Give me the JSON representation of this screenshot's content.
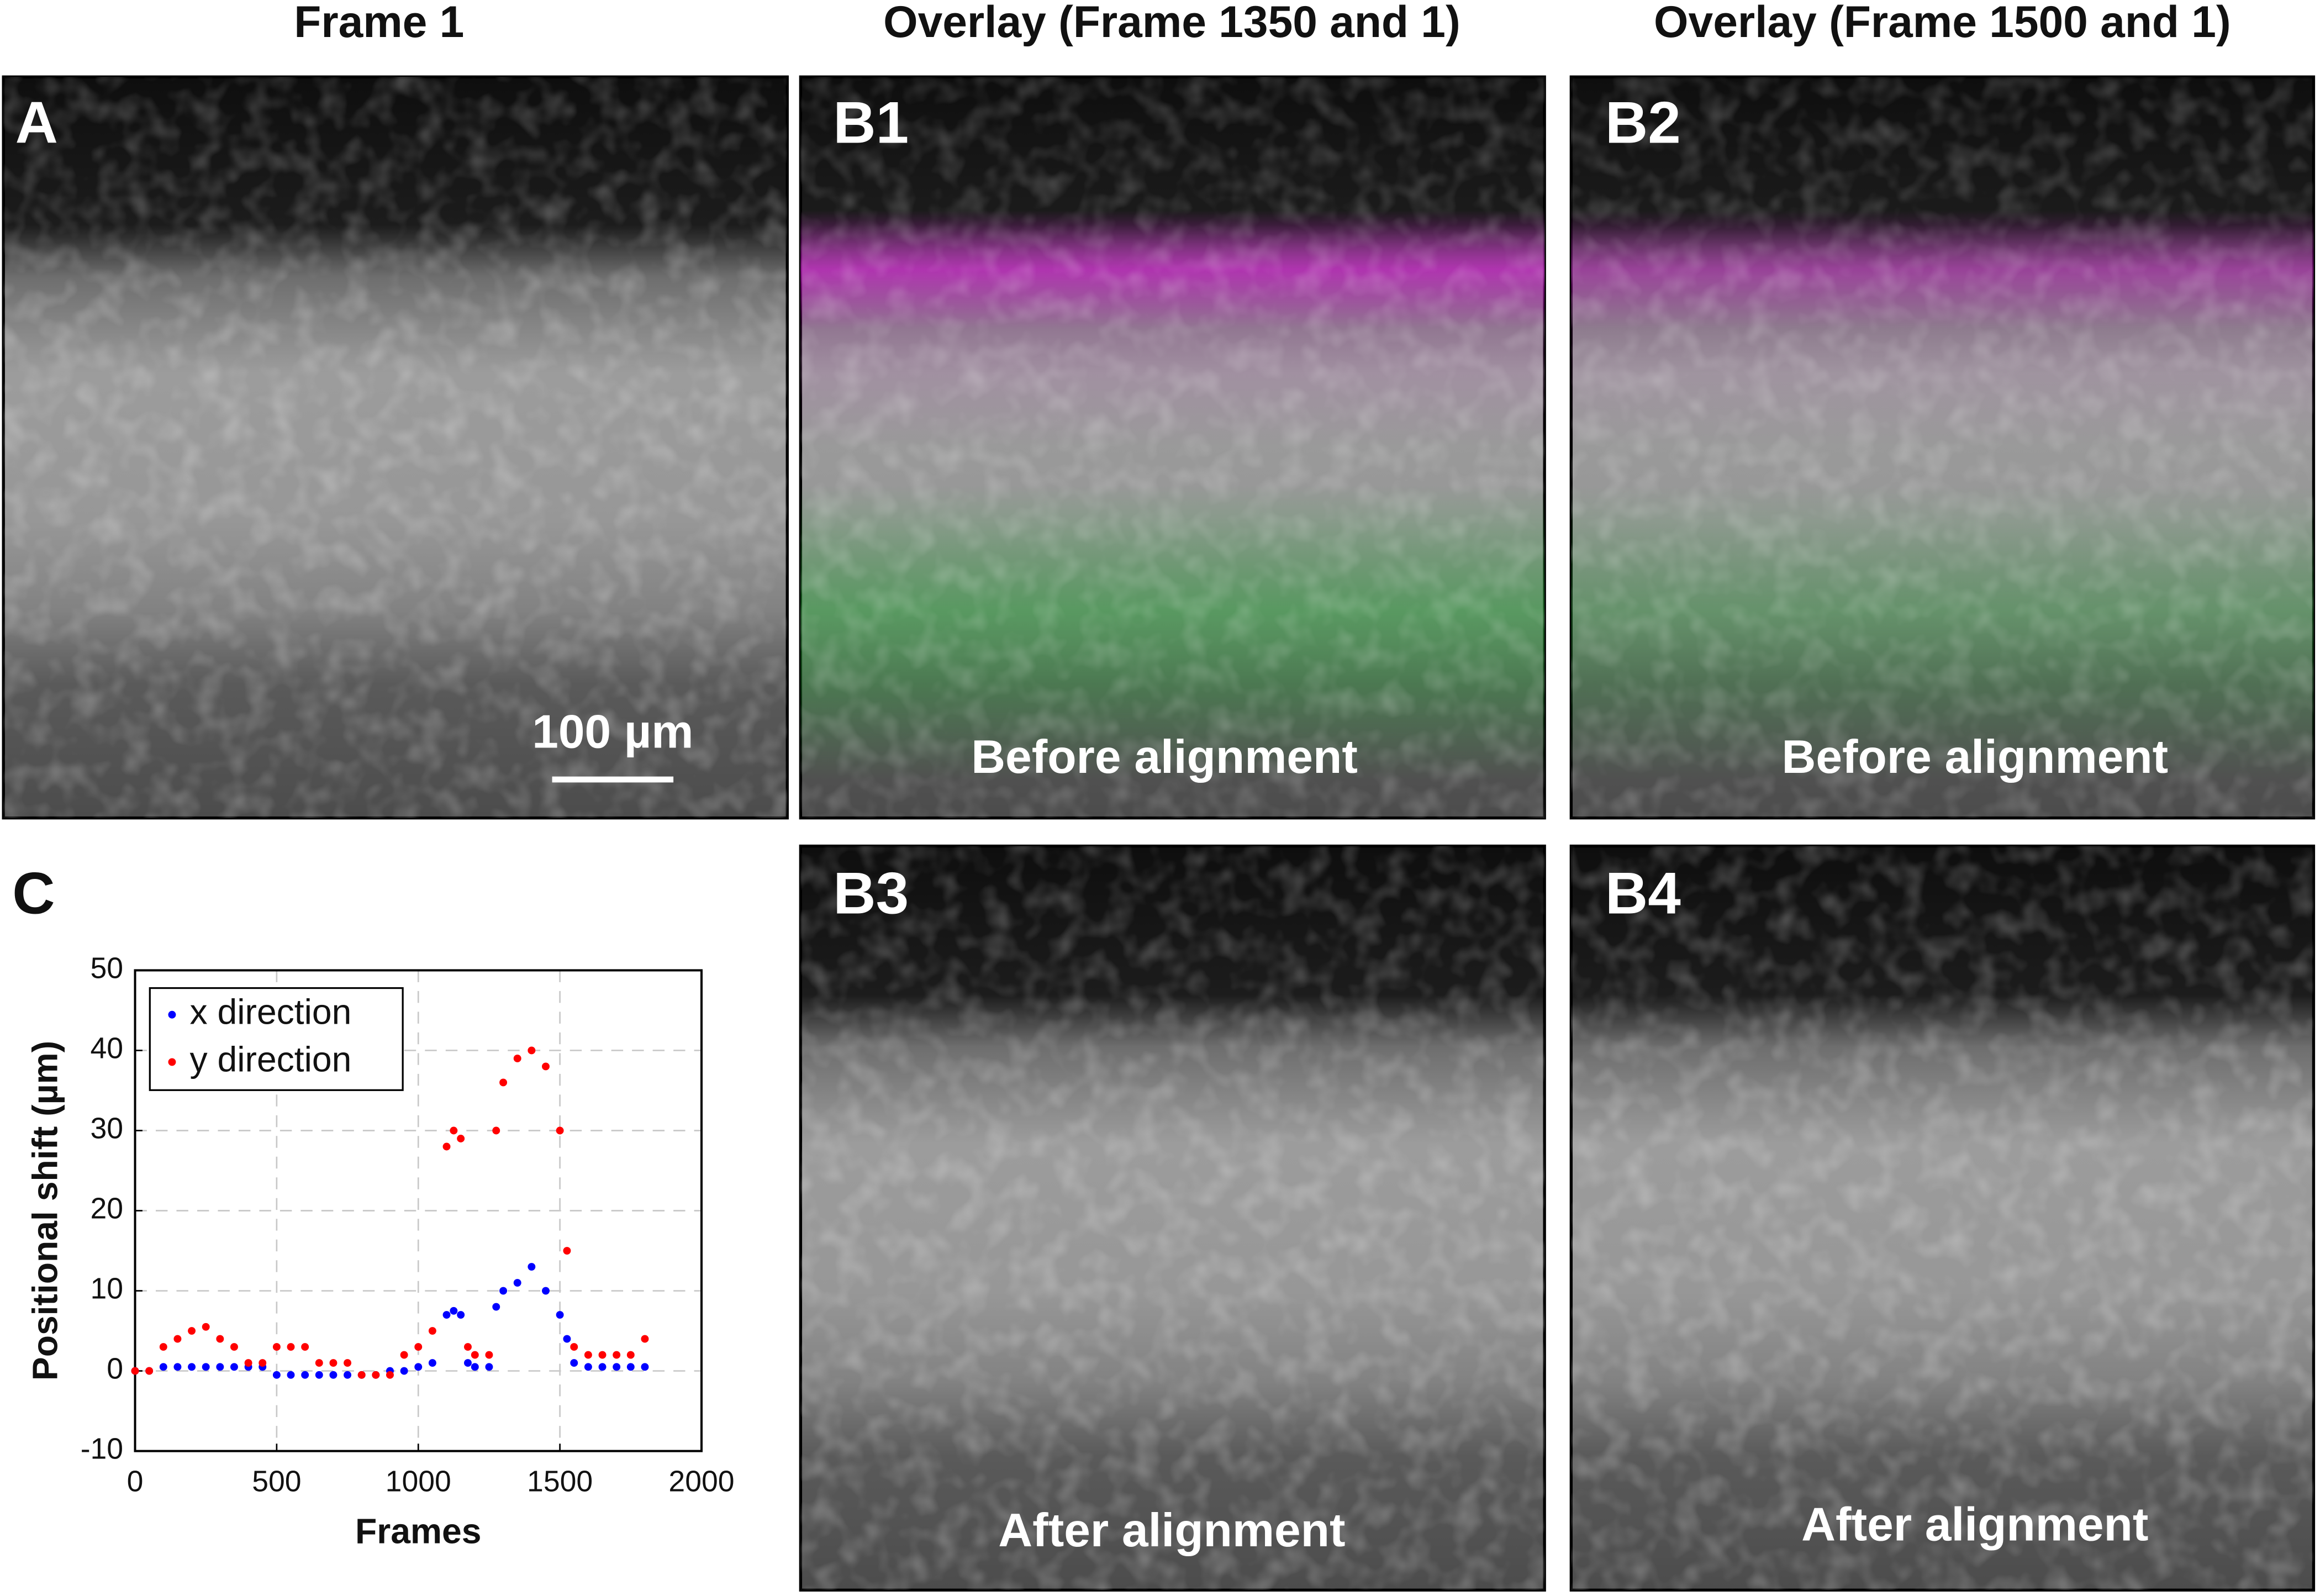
{
  "figure": {
    "column_titles": [
      "Frame 1",
      "Overlay (Frame 1350 and 1)",
      "Overlay (Frame 1500 and 1)"
    ],
    "panels": [
      {
        "label": "A",
        "scale_bar": "100 µm"
      },
      {
        "label": "B1",
        "caption": "Before alignment"
      },
      {
        "label": "B2",
        "caption": "Before alignment"
      },
      {
        "label": "B3",
        "caption": "After alignment"
      },
      {
        "label": "B4",
        "caption": "After alignment"
      },
      {
        "label": "C"
      }
    ]
  },
  "chart_data": {
    "type": "scatter",
    "xlabel": "Frames",
    "ylabel": "Positional shift (µm)",
    "x": [
      0,
      50,
      100,
      150,
      200,
      250,
      300,
      350,
      400,
      450,
      500,
      550,
      600,
      650,
      700,
      750,
      800,
      850,
      900,
      950,
      1000,
      1050,
      1100,
      1125,
      1150,
      1175,
      1200,
      1250,
      1275,
      1300,
      1350,
      1400,
      1450,
      1500,
      1525,
      1550,
      1600,
      1650,
      1700,
      1750,
      1800
    ],
    "series": [
      {
        "name": "x direction",
        "color": "#0000ff",
        "values": [
          0,
          0,
          0.5,
          0.5,
          0.5,
          0.5,
          0.5,
          0.5,
          0.5,
          0.5,
          -0.5,
          -0.5,
          -0.5,
          -0.5,
          -0.5,
          -0.5,
          -0.5,
          -0.5,
          0,
          0,
          0.5,
          1,
          7,
          7.5,
          7,
          1,
          0.5,
          0.5,
          8,
          10,
          11,
          13,
          10,
          7,
          4,
          1,
          0.5,
          0.5,
          0.5,
          0.5,
          0.5
        ]
      },
      {
        "name": "y direction",
        "color": "#ff0000",
        "values": [
          0,
          0,
          3,
          4,
          5,
          5.5,
          4,
          3,
          1,
          1,
          3,
          3,
          3,
          1,
          1,
          1,
          -0.5,
          -0.5,
          -0.5,
          2,
          3,
          5,
          28,
          30,
          29,
          3,
          2,
          2,
          30,
          36,
          39,
          40,
          38,
          30,
          15,
          3,
          2,
          2,
          2,
          2,
          4
        ]
      }
    ],
    "xlim": [
      0,
      2000
    ],
    "ylim": [
      -10,
      50
    ],
    "xticks": [
      0,
      500,
      1000,
      1500,
      2000
    ],
    "yticks": [
      -10,
      0,
      10,
      20,
      30,
      40,
      50
    ],
    "grid": true,
    "legend": "upper-left"
  }
}
